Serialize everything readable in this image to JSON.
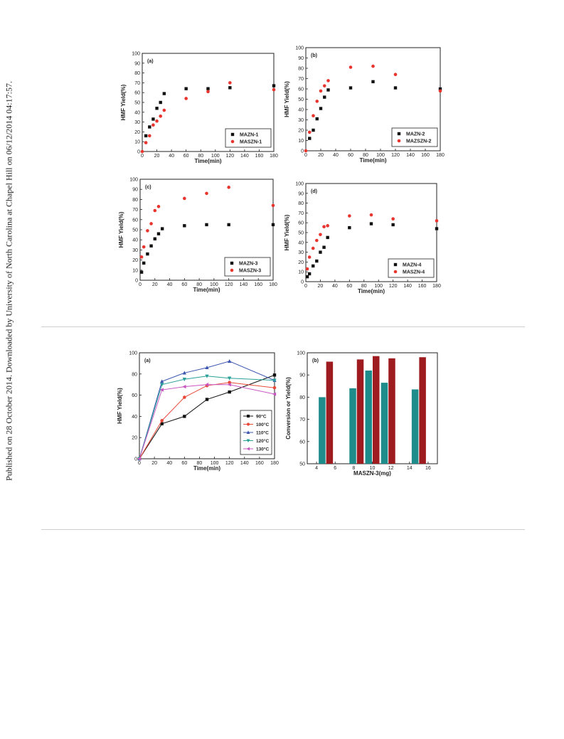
{
  "side_note": "Published on 28 October 2014. Downloaded by University of North Carolina at Chapel Hill on 06/12/2014 04:17:57.",
  "colors": {
    "black_series": "#111111",
    "red_series": "#e8352e",
    "90C": "#111111",
    "100C": "#e84a3a",
    "110C": "#3c56b0",
    "120C": "#2aa098",
    "130C": "#c956c0",
    "conversion_bar": "#1f8c8c",
    "yield_bar": "#9e1b1f"
  },
  "chart_data": [
    {
      "type": "scatter",
      "panel_label": "(a)",
      "xlabel": "Time(min)",
      "ylabel": "HMF Yield(%)",
      "xlim": [
        0,
        180
      ],
      "ylim": [
        0,
        100
      ],
      "xticks": [
        0,
        20,
        40,
        60,
        80,
        100,
        120,
        140,
        160,
        180
      ],
      "yticks": [
        0,
        10,
        20,
        30,
        40,
        50,
        60,
        70,
        80,
        90,
        100
      ],
      "legend_position": "bottom-right",
      "series": [
        {
          "name": "MAZN-1",
          "marker": "square",
          "color": "#111111",
          "x": [
            5,
            10,
            15,
            20,
            25,
            30,
            60,
            90,
            120,
            180
          ],
          "y": [
            16,
            25,
            33,
            44,
            50,
            59,
            64,
            64,
            65,
            67
          ]
        },
        {
          "name": "MASZN-1",
          "marker": "circle",
          "color": "#e8352e",
          "x": [
            0,
            5,
            10,
            15,
            20,
            25,
            30,
            60,
            90,
            120,
            180
          ],
          "y": [
            0,
            9,
            16,
            27,
            31,
            36,
            42,
            54,
            61,
            70,
            63
          ]
        }
      ]
    },
    {
      "type": "scatter",
      "panel_label": "(b)",
      "xlabel": "Time(min)",
      "ylabel": "HMF Yield(%)",
      "xlim": [
        0,
        180
      ],
      "ylim": [
        0,
        100
      ],
      "xticks": [
        0,
        20,
        40,
        60,
        80,
        100,
        120,
        140,
        160,
        180
      ],
      "yticks": [
        0,
        10,
        20,
        30,
        40,
        50,
        60,
        70,
        80,
        90,
        100
      ],
      "legend_position": "bottom-right",
      "series": [
        {
          "name": "MAZN-2",
          "marker": "square",
          "color": "#111111",
          "x": [
            5,
            10,
            15,
            20,
            25,
            30,
            60,
            90,
            120,
            180
          ],
          "y": [
            12,
            20,
            31,
            41,
            52,
            59,
            61,
            67,
            61,
            60
          ]
        },
        {
          "name": "MAZSZN-2",
          "marker": "circle",
          "color": "#e8352e",
          "x": [
            0,
            5,
            10,
            15,
            20,
            25,
            30,
            60,
            90,
            120,
            180
          ],
          "y": [
            0,
            18,
            34,
            48,
            58,
            63,
            68,
            81,
            82,
            74,
            58
          ]
        }
      ]
    },
    {
      "type": "scatter",
      "panel_label": "(c)",
      "xlabel": "Time(min)",
      "ylabel": "HMF Yield(%)",
      "xlim": [
        0,
        180
      ],
      "ylim": [
        0,
        100
      ],
      "xticks": [
        0,
        20,
        40,
        60,
        80,
        100,
        120,
        140,
        160,
        180
      ],
      "yticks": [
        0,
        10,
        20,
        30,
        40,
        50,
        60,
        70,
        80,
        90,
        100
      ],
      "legend_position": "bottom-right",
      "series": [
        {
          "name": "MAZN-3",
          "marker": "square",
          "color": "#111111",
          "x": [
            2,
            5,
            10,
            15,
            20,
            25,
            30,
            60,
            90,
            120,
            180
          ],
          "y": [
            8,
            17,
            26,
            34,
            41,
            46,
            51,
            54,
            55,
            55,
            55
          ]
        },
        {
          "name": "MASZN-3",
          "marker": "circle",
          "color": "#e8352e",
          "x": [
            2,
            5,
            10,
            15,
            20,
            25,
            60,
            90,
            120,
            180
          ],
          "y": [
            23,
            33,
            49,
            56,
            69,
            73,
            81,
            86,
            92,
            74
          ]
        }
      ]
    },
    {
      "type": "scatter",
      "panel_label": "(d)",
      "xlabel": "Time(min)",
      "ylabel": "HMF Yield(%)",
      "xlim": [
        0,
        180
      ],
      "ylim": [
        0,
        100
      ],
      "xticks": [
        0,
        20,
        40,
        60,
        80,
        100,
        120,
        140,
        160,
        180
      ],
      "yticks": [
        0,
        10,
        20,
        30,
        40,
        50,
        60,
        70,
        80,
        90,
        100
      ],
      "legend_position": "bottom-right",
      "series": [
        {
          "name": "MAZN-4",
          "marker": "square",
          "color": "#111111",
          "x": [
            2,
            5,
            10,
            15,
            20,
            25,
            30,
            60,
            90,
            120,
            180
          ],
          "y": [
            5,
            8,
            16,
            21,
            30,
            35,
            45,
            55,
            59,
            58,
            54
          ]
        },
        {
          "name": "MASZN-4",
          "marker": "circle",
          "color": "#e8352e",
          "x": [
            2,
            5,
            10,
            15,
            20,
            25,
            30,
            60,
            90,
            120,
            180
          ],
          "y": [
            13,
            25,
            34,
            42,
            48,
            56,
            57,
            67,
            68,
            64,
            62
          ]
        }
      ]
    },
    {
      "type": "line",
      "panel_label": "(a)",
      "xlabel": "Time(min)",
      "ylabel": "HMF Yield(%)",
      "xlim": [
        0,
        180
      ],
      "ylim": [
        0,
        100
      ],
      "xticks": [
        0,
        20,
        40,
        60,
        80,
        100,
        120,
        140,
        160,
        180
      ],
      "yticks": [
        0,
        20,
        40,
        60,
        80,
        100
      ],
      "legend_position": "bottom-right",
      "series": [
        {
          "name": "90°C",
          "marker": "square",
          "color": "#111111",
          "x": [
            0,
            30,
            60,
            90,
            120,
            180
          ],
          "y": [
            0,
            33,
            40,
            56,
            63,
            79
          ]
        },
        {
          "name": "100°C",
          "marker": "circle",
          "color": "#e84a3a",
          "x": [
            0,
            30,
            60,
            90,
            120,
            180
          ],
          "y": [
            0,
            36,
            58,
            69,
            72,
            67
          ]
        },
        {
          "name": "110°C",
          "marker": "triangle-up",
          "color": "#3c56b0",
          "x": [
            0,
            30,
            60,
            90,
            120,
            180
          ],
          "y": [
            0,
            73,
            81,
            86,
            92,
            74
          ]
        },
        {
          "name": "120°C",
          "marker": "triangle-down",
          "color": "#2aa098",
          "x": [
            0,
            30,
            60,
            90,
            120,
            180
          ],
          "y": [
            0,
            70,
            75,
            78,
            76,
            74
          ]
        },
        {
          "name": "130°C",
          "marker": "triangle-left",
          "color": "#c956c0",
          "x": [
            0,
            30,
            60,
            90,
            120,
            180
          ],
          "y": [
            0,
            65,
            68,
            70,
            70,
            61
          ]
        }
      ]
    },
    {
      "type": "bar",
      "panel_label": "(b)",
      "xlabel": "MASZN-3(mg)",
      "ylabel": "Conversion or Yield(%)",
      "xlim": [
        3,
        17
      ],
      "ylim": [
        50,
        100
      ],
      "xticks": [
        4,
        6,
        8,
        10,
        12,
        14,
        16
      ],
      "yticks": [
        50,
        60,
        70,
        80,
        90,
        100
      ],
      "categories": [
        5,
        8.3,
        10,
        11.7,
        15
      ],
      "series": [
        {
          "color": "#1f8c8c",
          "values": [
            80,
            84,
            92,
            86.5,
            83.5
          ]
        },
        {
          "color": "#9e1b1f",
          "values": [
            96,
            97,
            98.5,
            97.5,
            98
          ]
        }
      ]
    }
  ]
}
